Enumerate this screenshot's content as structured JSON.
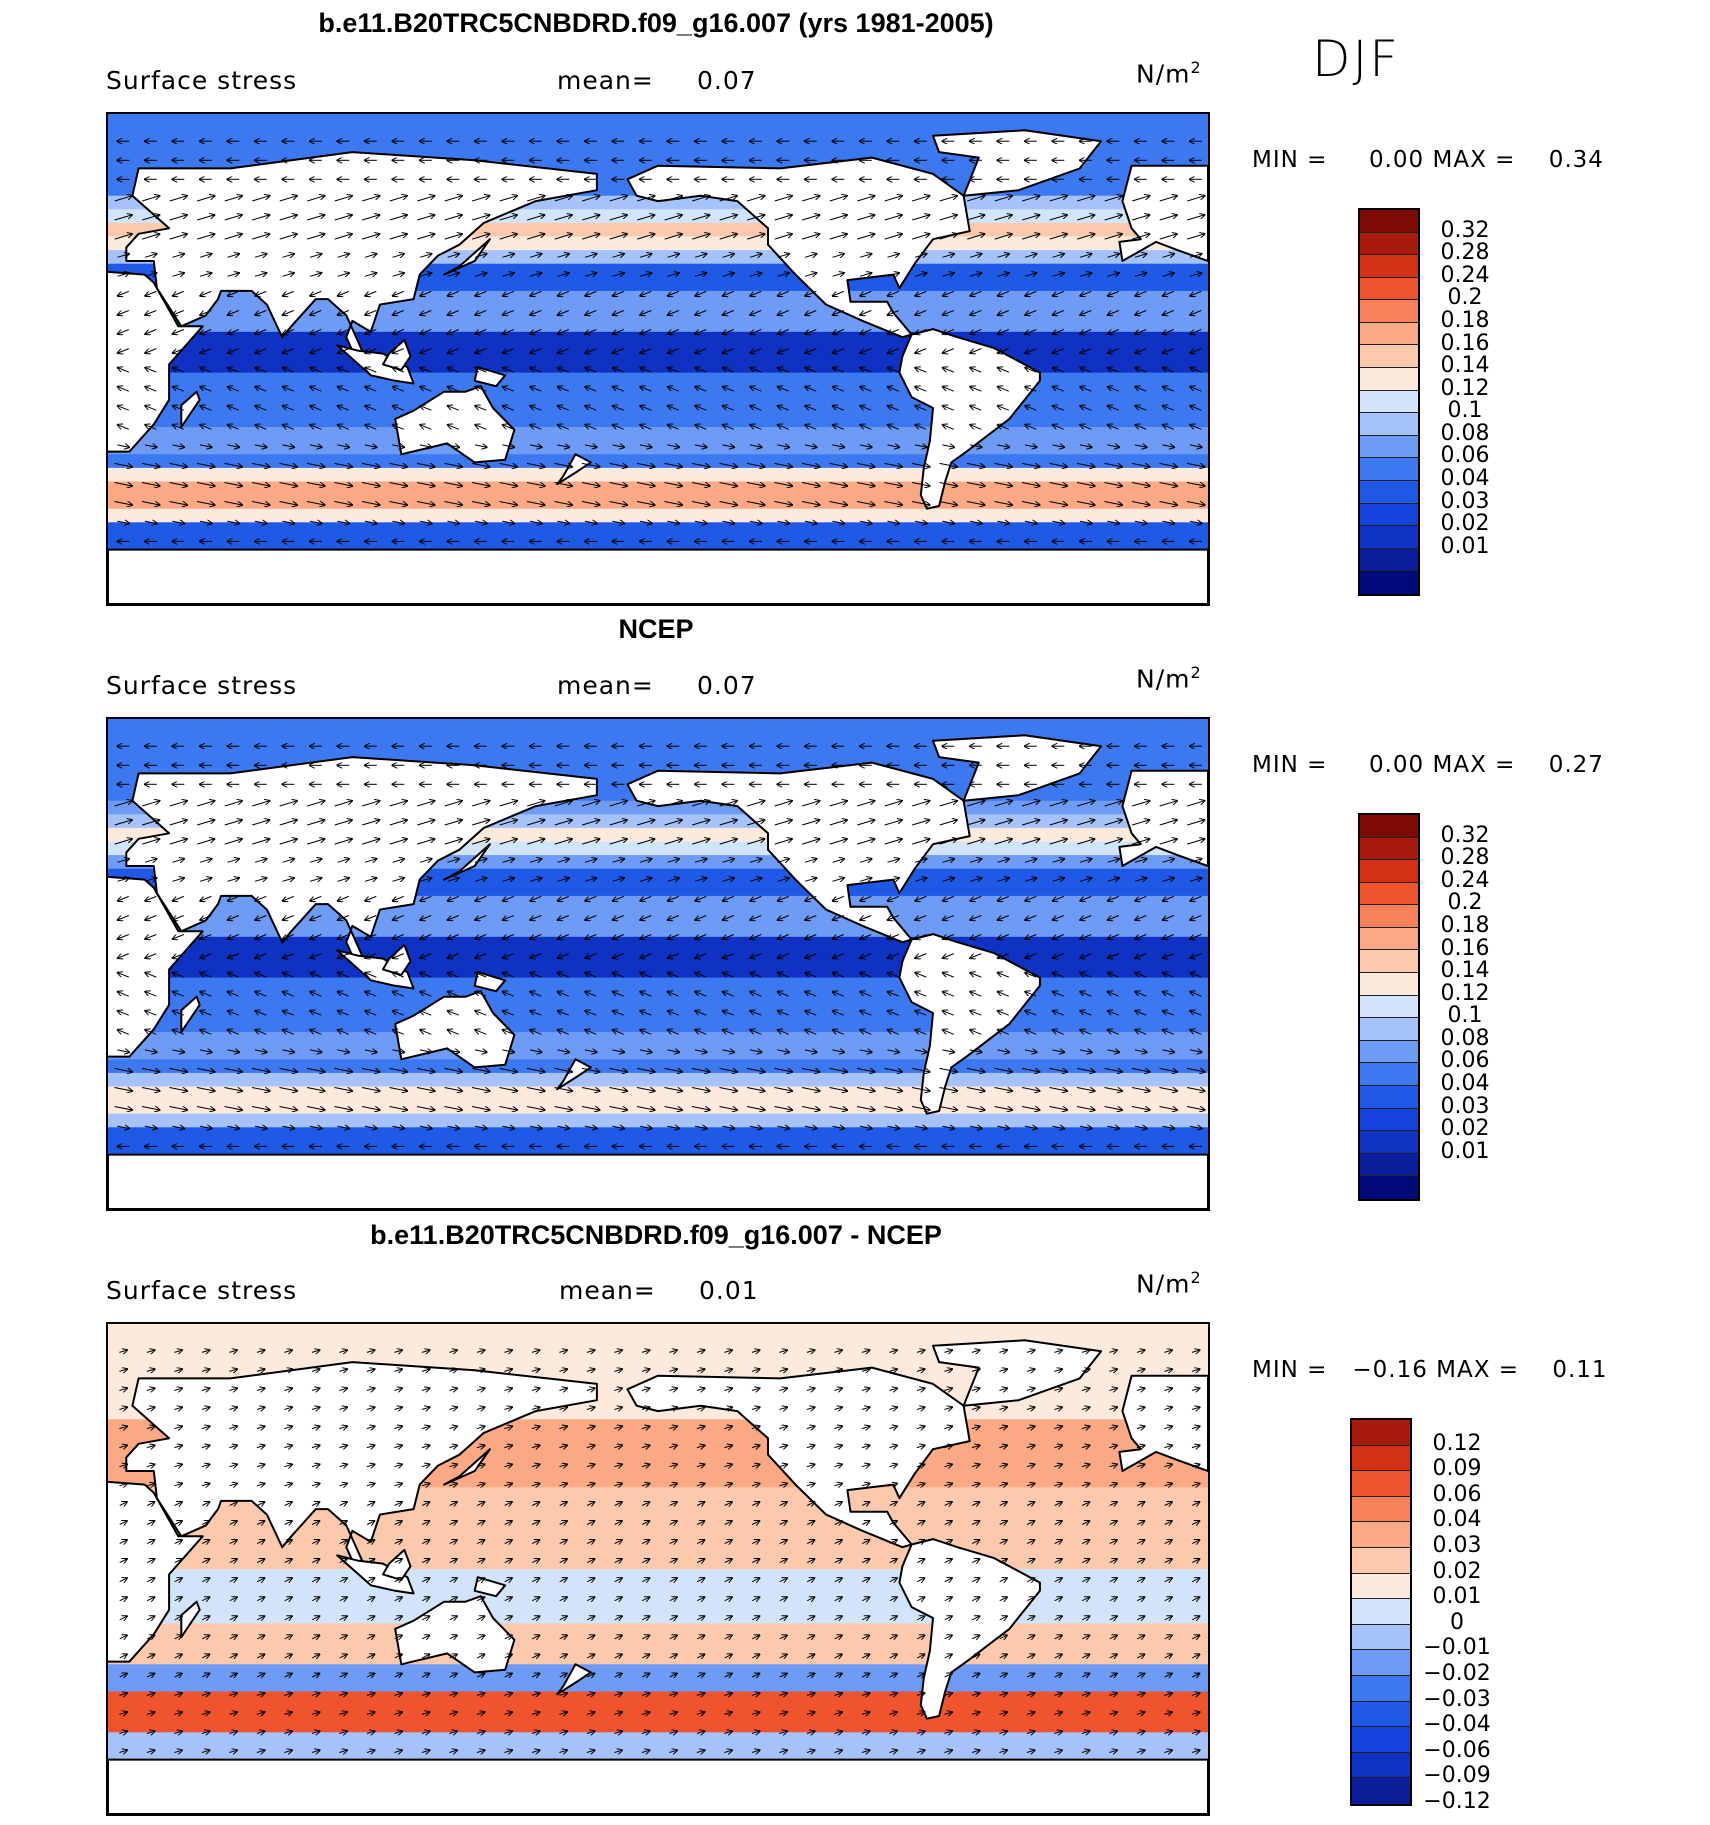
{
  "season": "DJF",
  "units": "N/m",
  "units_exp": "2",
  "variable": "Surface stress",
  "mean_label": "mean=",
  "min_label": "MIN =",
  "max_label": "MAX =",
  "colors": {
    "main": [
      "#000a78",
      "#0a1e9b",
      "#0f32c3",
      "#1443dc",
      "#1e5ae6",
      "#3c78f0",
      "#6e9bf5",
      "#a5c3fa",
      "#d2e4fc",
      "#fdeadc",
      "#fcc9ad",
      "#fba884",
      "#f7825a",
      "#f0542d",
      "#d23212",
      "#a81a0c",
      "#7d0a05"
    ],
    "diff": [
      "#0a1e9b",
      "#0f32c3",
      "#1443dc",
      "#1e5ae6",
      "#3c78f0",
      "#6e9bf5",
      "#a5c3fa",
      "#d2e4fc",
      "#fdeadc",
      "#fcc9ad",
      "#fba884",
      "#f7825a",
      "#f0542d",
      "#d23212",
      "#a81a0c"
    ]
  },
  "chart_data": [
    {
      "type": "heatmap",
      "title": "b.e11.B20TRC5CNBDRD.f09_g16.007 (yrs 1981-2005)",
      "subtitle_left": "Surface stress",
      "mean": "0.07",
      "min": "0.00",
      "max": "0.34",
      "colorbar_levels": [
        "0.32",
        "0.28",
        "0.24",
        "0.2",
        "0.18",
        "0.16",
        "0.14",
        "0.12",
        "0.1",
        "0.08",
        "0.06",
        "0.04",
        "0.03",
        "0.02",
        "0.01"
      ]
    },
    {
      "type": "heatmap",
      "title": "NCEP",
      "subtitle_left": "Surface stress",
      "mean": "0.07",
      "min": "0.00",
      "max": "0.27",
      "colorbar_levels": [
        "0.32",
        "0.28",
        "0.24",
        "0.2",
        "0.18",
        "0.16",
        "0.14",
        "0.12",
        "0.1",
        "0.08",
        "0.06",
        "0.04",
        "0.03",
        "0.02",
        "0.01"
      ]
    },
    {
      "type": "heatmap",
      "title": "b.e11.B20TRC5CNBDRD.f09_g16.007 - NCEP",
      "subtitle_left": "Surface stress",
      "mean": "0.01",
      "min": "−0.16",
      "max": "0.11",
      "colorbar_levels": [
        "0.12",
        "0.09",
        "0.06",
        "0.04",
        "0.03",
        "0.02",
        "0.01",
        "0",
        "−0.01",
        "−0.02",
        "−0.03",
        "−0.04",
        "−0.06",
        "−0.09",
        "−0.12"
      ]
    }
  ]
}
